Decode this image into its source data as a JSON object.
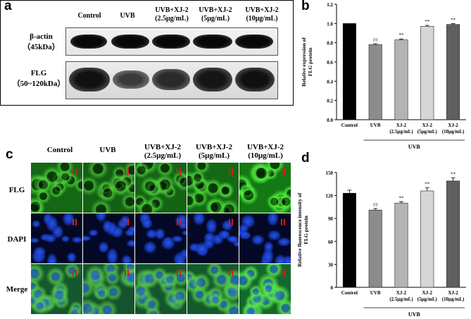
{
  "panels": {
    "a": "a",
    "b": "b",
    "c": "c",
    "d": "d"
  },
  "lanes": [
    {
      "line1": "Control",
      "line2": ""
    },
    {
      "line1": "UVB",
      "line2": ""
    },
    {
      "line1": "UVB+XJ-2",
      "line2": "(2.5μg/mL)"
    },
    {
      "line1": "UVB+XJ-2",
      "line2": "(5μg/mL)"
    },
    {
      "line1": "UVB+XJ-2",
      "line2": "(10μg/mL)"
    }
  ],
  "blot_rows": [
    {
      "name": "β-actin",
      "size": "（45kDa）"
    },
    {
      "name": "FLG",
      "size": "（50~120kDa）"
    }
  ],
  "image_rows": [
    "FLG",
    "DAPI",
    "Merge"
  ],
  "chart_data": [
    {
      "panel": "b",
      "type": "bar",
      "categories": [
        "Control",
        "UVB",
        "XJ-2\n(2.5μg/mL)",
        "XJ-2\n(5μg/mL)",
        "XJ-2\n(10μg/mL)"
      ],
      "values": [
        1.0,
        0.78,
        0.83,
        0.97,
        0.99
      ],
      "errors": [
        0,
        0.01,
        0.01,
        0.01,
        0.01
      ],
      "significance": [
        "",
        "##",
        "**",
        "**",
        "**"
      ],
      "bar_colors": [
        "#000000",
        "#8c8c8c",
        "#b4b4b4",
        "#d6d6d6",
        "#5f5f5f"
      ],
      "ylabel": "Relative expression of\nFLG protein",
      "ylim": [
        0,
        1.2
      ],
      "yticks": [
        "0.0",
        "0.2",
        "0.4",
        "0.6",
        "0.8",
        "1.0",
        "1.2"
      ],
      "group_label": "UVB",
      "grid": false
    },
    {
      "panel": "d",
      "type": "bar",
      "categories": [
        "Control",
        "UVB",
        "XJ-2\n(2.5μg/mL)",
        "XJ-2\n(5μg/mL)",
        "XJ-2\n(10μg/mL)"
      ],
      "values": [
        123,
        101,
        110,
        126,
        139
      ],
      "errors": [
        4,
        2,
        2,
        4,
        4
      ],
      "significance": [
        "",
        "##",
        "**",
        "**",
        "**"
      ],
      "bar_colors": [
        "#000000",
        "#8c8c8c",
        "#b4b4b4",
        "#d6d6d6",
        "#5f5f5f"
      ],
      "ylabel": "Relative fluorescence intensity of\nFLG protein",
      "ylim": [
        0,
        150
      ],
      "yticks": [
        "0",
        "30",
        "60",
        "90",
        "120",
        "150"
      ],
      "group_label": "UVB",
      "grid": false
    }
  ]
}
